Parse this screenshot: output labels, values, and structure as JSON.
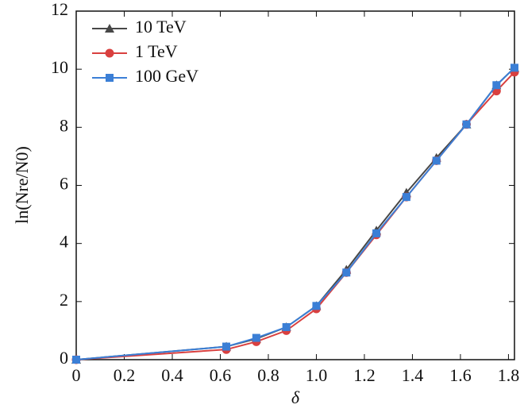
{
  "chart_data": {
    "type": "line",
    "x_label": "δ",
    "y_label": "ln(Nre/N0)",
    "x": [
      0,
      0.625,
      0.75,
      0.875,
      1.0,
      1.125,
      1.25,
      1.375,
      1.5,
      1.625,
      1.75,
      1.825
    ],
    "series": [
      {
        "name": "10 TeV",
        "color": "#474747",
        "marker": "triangle",
        "values": [
          0,
          0.45,
          0.72,
          1.12,
          1.85,
          3.1,
          4.45,
          5.75,
          6.95,
          8.1,
          9.45,
          10.05
        ]
      },
      {
        "name": "1 TeV",
        "color": "#d9403f",
        "marker": "circle",
        "values": [
          0,
          0.35,
          0.62,
          1.0,
          1.75,
          3.0,
          4.3,
          5.6,
          6.85,
          8.1,
          9.25,
          9.9
        ]
      },
      {
        "name": "100 GeV",
        "color": "#3b7fd6",
        "marker": "square",
        "values": [
          0,
          0.45,
          0.75,
          1.12,
          1.85,
          3.0,
          4.35,
          5.6,
          6.85,
          8.1,
          9.45,
          10.05
        ]
      }
    ],
    "xlim": [
      0,
      1.825
    ],
    "xticks": [
      0,
      0.2,
      0.4,
      0.6,
      0.8,
      {
        "value": 1,
        "label": "1.0"
      },
      1.2,
      1.4,
      1.6,
      1.8
    ],
    "ylim": [
      0,
      12
    ],
    "yticks": [
      0,
      2,
      4,
      6,
      8,
      10,
      12
    ],
    "legend": "upper-left"
  }
}
